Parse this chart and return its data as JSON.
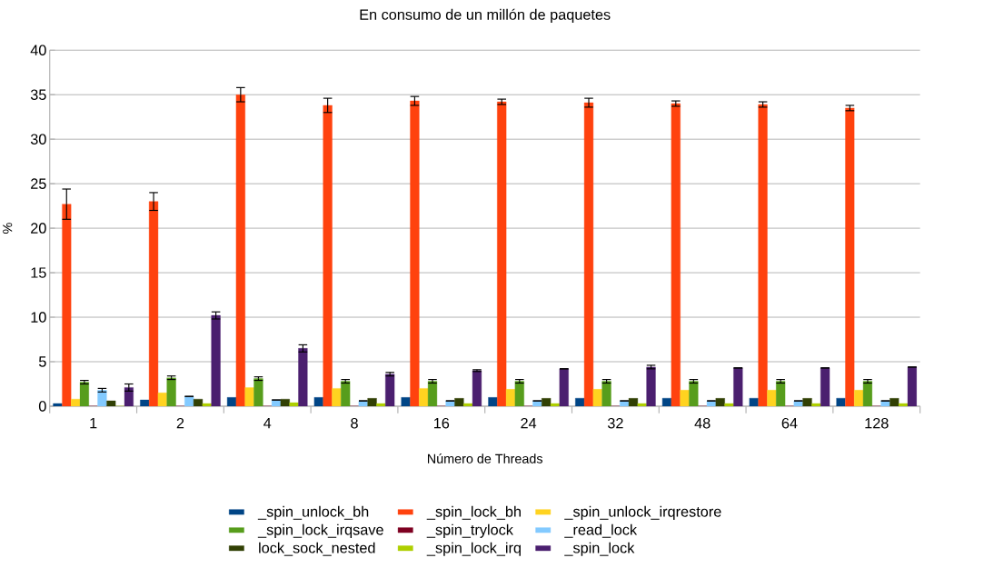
{
  "chart_data": {
    "type": "bar",
    "title": "En consumo de un millón de paquetes",
    "xlabel": "Número de Threads",
    "ylabel": "%",
    "categories": [
      "1",
      "2",
      "4",
      "8",
      "16",
      "24",
      "32",
      "48",
      "64",
      "128"
    ],
    "ylim": [
      0,
      40
    ],
    "yticks": [
      0,
      5,
      10,
      15,
      20,
      25,
      30,
      35,
      40
    ],
    "grid": "y",
    "legend": "bottom",
    "series": [
      {
        "name": "_spin_unlock_bh",
        "color": "#004586",
        "values": [
          0.3,
          0.7,
          1.0,
          1.0,
          1.0,
          1.0,
          0.9,
          0.9,
          0.9,
          0.9
        ]
      },
      {
        "name": "_spin_lock_bh",
        "color": "#ff420e",
        "values": [
          22.7,
          23.0,
          35.0,
          33.8,
          34.3,
          34.2,
          34.1,
          34.0,
          33.9,
          33.5
        ],
        "errors": [
          1.7,
          1.0,
          0.8,
          0.8,
          0.5,
          0.3,
          0.5,
          0.3,
          0.3,
          0.3
        ]
      },
      {
        "name": "_spin_unlock_irqrestore",
        "color": "#ffd320",
        "values": [
          0.8,
          1.5,
          2.1,
          2.0,
          2.0,
          1.9,
          1.9,
          1.8,
          1.8,
          1.8
        ]
      },
      {
        "name": "_spin_lock_irqsave",
        "color": "#579d1c",
        "values": [
          2.7,
          3.2,
          3.1,
          2.8,
          2.8,
          2.8,
          2.8,
          2.8,
          2.8,
          2.8
        ],
        "errors": [
          0.2,
          0.2,
          0.2,
          0.2,
          0.2,
          0.2,
          0.2,
          0.2,
          0.2,
          0.2
        ]
      },
      {
        "name": "_spin_trylock",
        "color": "#7e0021",
        "values": [
          0,
          0,
          0,
          0,
          0,
          0,
          0,
          0,
          0,
          0
        ]
      },
      {
        "name": "_read_lock",
        "color": "#83caff",
        "values": [
          1.8,
          1.1,
          0.7,
          0.6,
          0.6,
          0.6,
          0.6,
          0.6,
          0.6,
          0.6
        ],
        "errors": [
          0.2,
          null,
          null,
          null,
          null,
          null,
          null,
          null,
          null,
          null
        ]
      },
      {
        "name": "lock_sock_nested",
        "color": "#314004",
        "values": [
          0.6,
          0.8,
          0.8,
          0.9,
          0.9,
          0.9,
          0.9,
          0.9,
          0.9,
          0.9
        ]
      },
      {
        "name": "_spin_lock_irq",
        "color": "#aecf00",
        "values": [
          0,
          0.3,
          0.4,
          0.3,
          0.3,
          0.3,
          0.3,
          0.3,
          0.3,
          0.3
        ]
      },
      {
        "name": "_spin_lock",
        "color": "#4b1f6f",
        "values": [
          2.1,
          10.2,
          6.5,
          3.6,
          4.0,
          4.2,
          4.4,
          4.3,
          4.3,
          4.4
        ],
        "errors": [
          0.4,
          0.4,
          0.4,
          0.2,
          0.1,
          null,
          0.2,
          null,
          null,
          null
        ]
      }
    ]
  }
}
